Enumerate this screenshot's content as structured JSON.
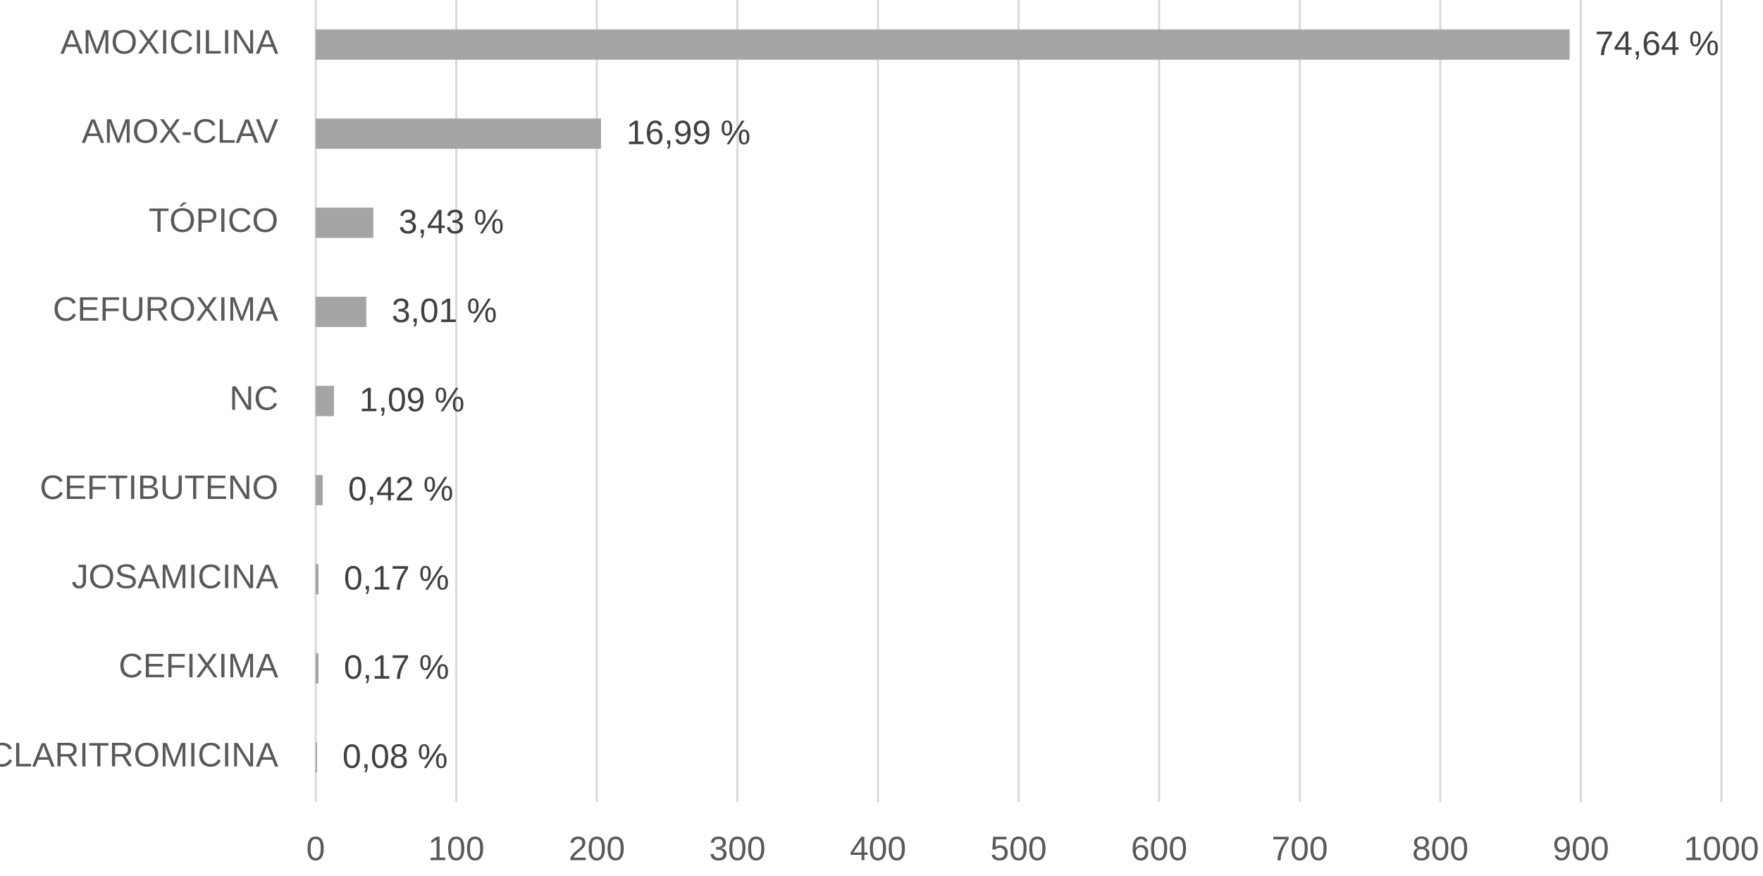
{
  "chart_data": {
    "type": "barh",
    "categories": [
      "AMOXICILINA",
      "AMOX-CLAV",
      "TÓPICO",
      "CEFUROXIMA",
      "NC",
      "CEFTIBUTENO",
      "JOSAMICINA",
      "CEFIXIMA",
      "CLARITROMICINA"
    ],
    "values": [
      892,
      203,
      41,
      36,
      13,
      5,
      2,
      2,
      1
    ],
    "data_labels": [
      "74,64 %",
      "16,99 %",
      "3,43 %",
      "3,01 %",
      "1,09 %",
      "0,42 %",
      "0,17 %",
      "0,17 %",
      "0,08 %"
    ],
    "color": "#a5a5a5",
    "xlim": [
      0,
      1000
    ],
    "xticks": [
      0,
      100,
      200,
      300,
      400,
      500,
      600,
      700,
      800,
      900,
      1000
    ],
    "grid": true
  }
}
